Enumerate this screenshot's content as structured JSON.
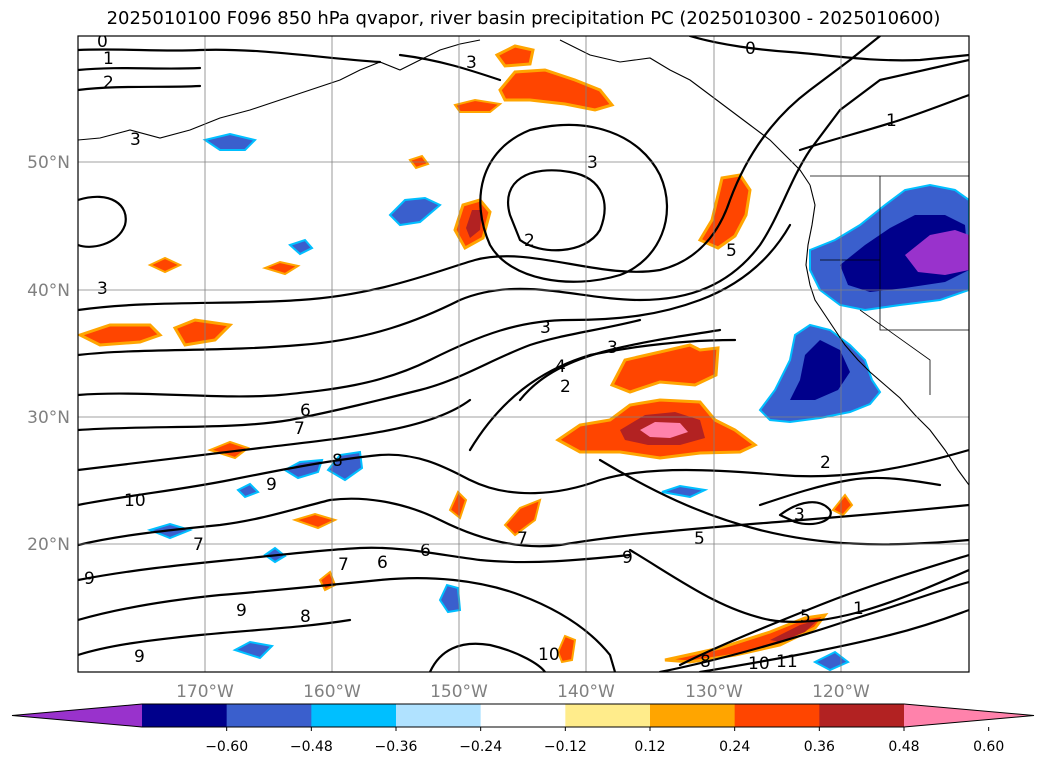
{
  "title": "2025010100 F096 850 hPa qvapor, river basin precipitation PC (2025010300 - 2025010600)",
  "lat_labels": [
    "50°N",
    "40°N",
    "30°N",
    "20°N"
  ],
  "lon_labels": [
    "170°W",
    "160°W",
    "150°W",
    "140°W",
    "130°W",
    "120°W"
  ],
  "colorbar": {
    "colors": [
      "#9932cc",
      "#00008b",
      "#3a5fcd",
      "#00bfff",
      "#b0e2ff",
      "#ffffff",
      "#ffec8b",
      "#ffa500",
      "#ff4500",
      "#b22222",
      "#ff82ab"
    ],
    "tick_labels": [
      "−0.60",
      "−0.48",
      "−0.36",
      "−0.24",
      "−0.12",
      "0.12",
      "0.24",
      "0.36",
      "0.48",
      "0.60"
    ]
  },
  "contour_labels": [
    "0",
    "1",
    "2",
    "3",
    "3",
    "3",
    "2",
    "5",
    "3",
    "0",
    "1",
    "3",
    "4",
    "3",
    "2",
    "6",
    "7",
    "9",
    "8",
    "10",
    "7",
    "6",
    "7",
    "6",
    "9",
    "7",
    "5",
    "2",
    "3",
    "9",
    "8",
    "9",
    "10",
    "5",
    "1",
    "8",
    "10",
    "11",
    "9"
  ]
}
